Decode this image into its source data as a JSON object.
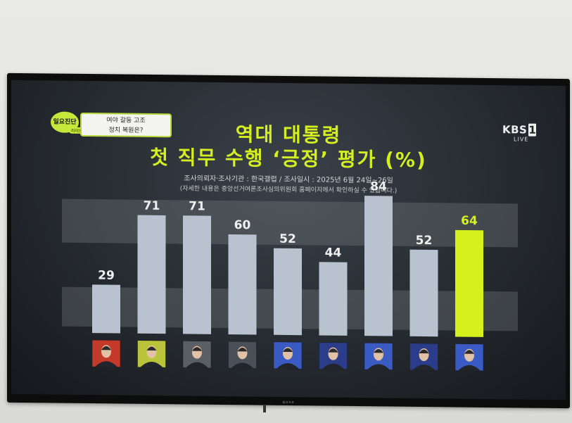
{
  "program": {
    "badge": "일요진단",
    "badge_sub": "라이브",
    "topic_line1": "여야 갈등 고조",
    "topic_line2": "정치 복원은?"
  },
  "channel": {
    "name": "KBS",
    "number": "1",
    "live": "LIVE"
  },
  "tv_brand": "필유프로",
  "chart_data": {
    "type": "bar",
    "title": "역대 대통령",
    "subtitle": "첫 직무 수행 ‘긍정’ 평가 (%)",
    "source": "조사의뢰자·조사기관 : 한국갤럽  / 조사일시 : 2025년 6월 24일~26일",
    "note": "(자세한 내용은 중앙선거여론조사심의위원회 홈페이지에서 확인하실 수 있습니다.)",
    "categories": [
      "",
      "",
      "",
      "",
      "",
      "",
      "",
      "",
      ""
    ],
    "values": [
      29,
      71,
      71,
      60,
      52,
      44,
      84,
      52,
      64
    ],
    "highlight_index": 8,
    "portrait_bg": [
      "#c43a2a",
      "#b9c43a",
      "#5a5f66",
      "#4a5058",
      "#3a5ac4",
      "#2a3c8a",
      "#3a5ac4",
      "#2a3c8a",
      "#3a5ac4"
    ],
    "colors": {
      "bar": "#b9c3cf",
      "highlight": "#d6f01c",
      "title": "#d4ee22"
    },
    "ylim": [
      0,
      100
    ],
    "xlabel": "",
    "ylabel": "",
    "grid": false
  }
}
